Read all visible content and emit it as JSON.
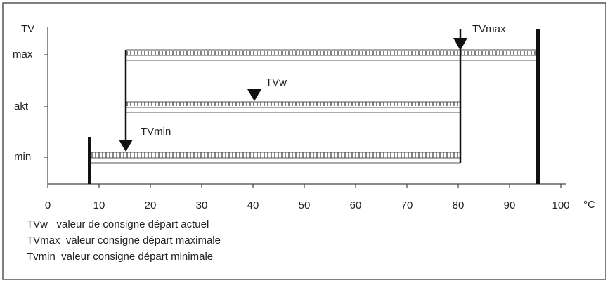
{
  "y_axis": {
    "title": "TV",
    "levels": [
      "max",
      "akt",
      "min"
    ]
  },
  "x_axis": {
    "ticks": [
      0,
      10,
      20,
      30,
      40,
      50,
      60,
      70,
      80,
      90,
      100
    ],
    "unit": "°C"
  },
  "markers": [
    "TVmax",
    "TVw",
    "TVmin"
  ],
  "legend": [
    "TVw   valeur de consigne départ actuel",
    "TVmax  valeur consigne départ maximale",
    "Tvmin  valeur consigne départ minimale"
  ]
}
